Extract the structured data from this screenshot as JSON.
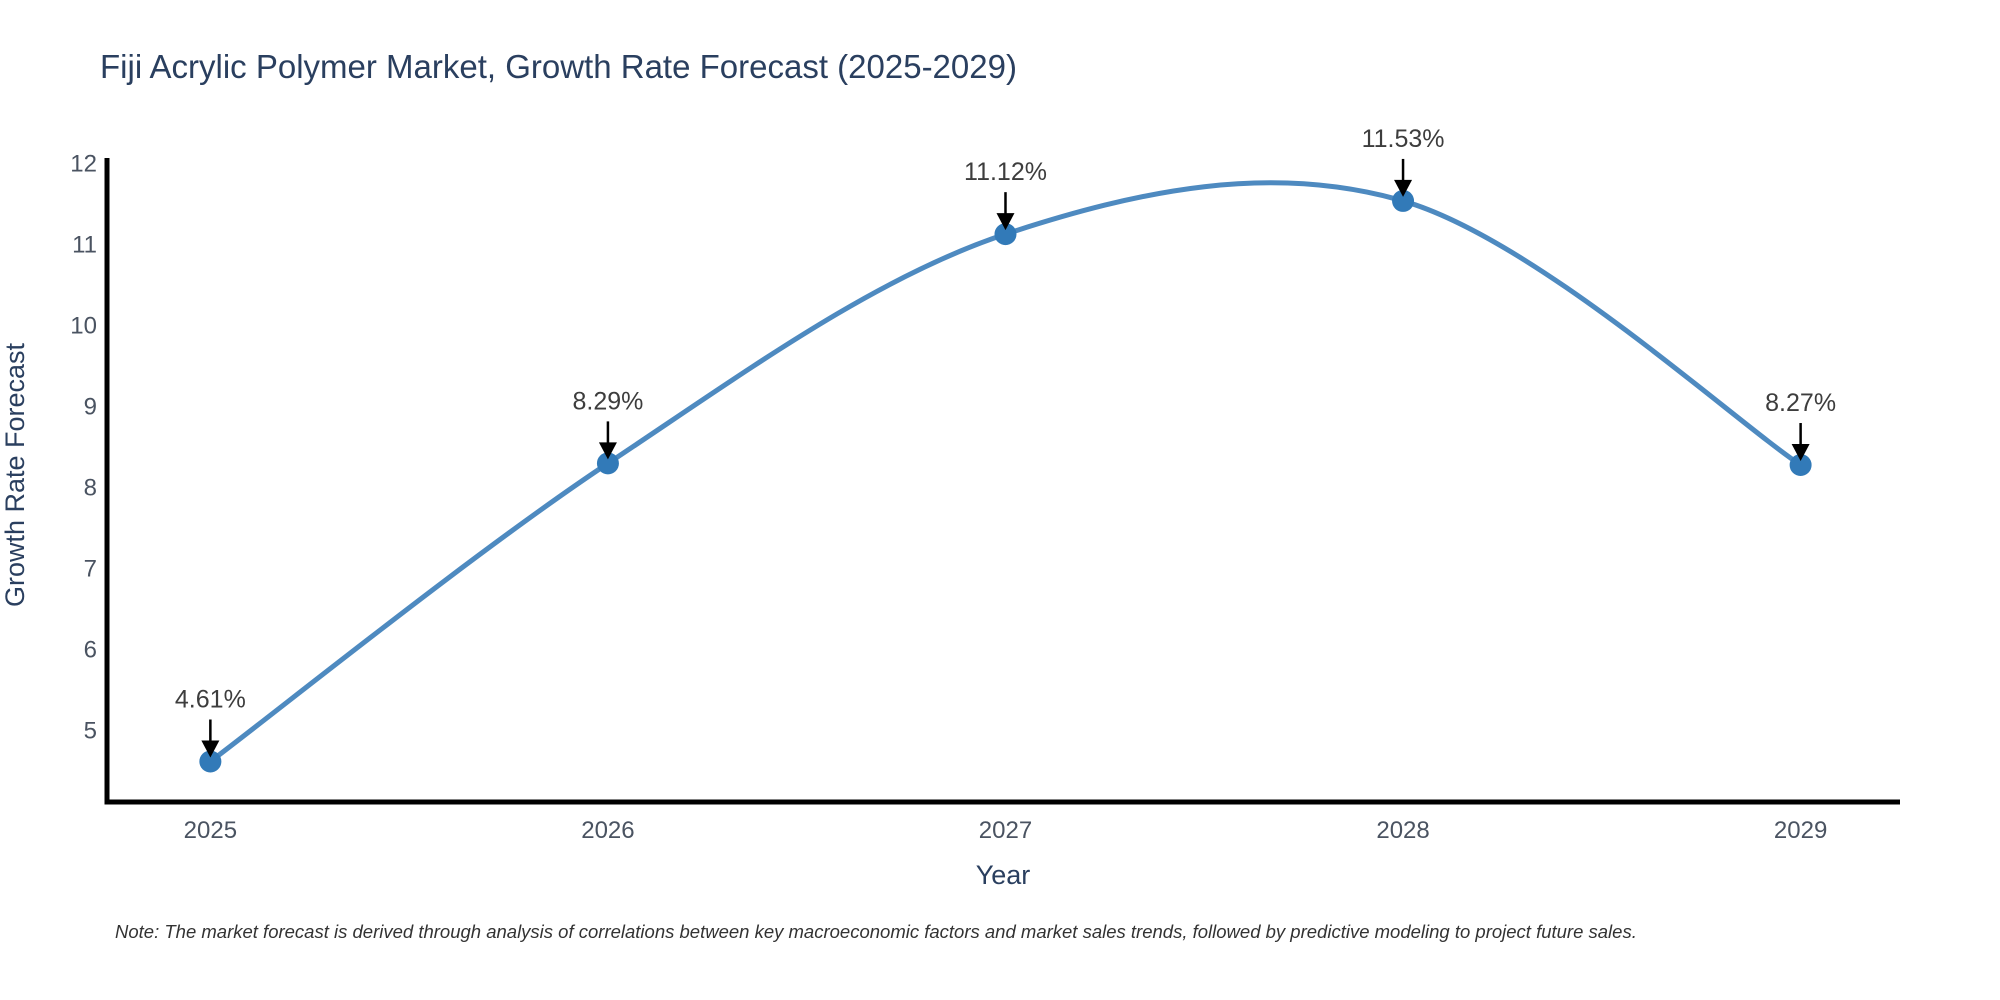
{
  "note": "Note: The market forecast is derived through analysis of correlations between key macroeconomic factors and market sales trends, followed by predictive modeling to project future sales.",
  "chart_data": {
    "type": "line",
    "title": "Fiji Acrylic Polymer Market, Growth Rate Forecast (2025-2029)",
    "xlabel": "Year",
    "ylabel": "Growth Rate Forecast",
    "x": [
      2025,
      2026,
      2027,
      2028,
      2029
    ],
    "values": [
      4.61,
      8.29,
      11.12,
      11.53,
      8.27
    ],
    "point_labels": [
      "4.61%",
      "8.29%",
      "11.12%",
      "11.53%",
      "8.27%"
    ],
    "xtick_labels": [
      "2025",
      "2026",
      "2027",
      "2028",
      "2029"
    ],
    "yticks": [
      5,
      6,
      7,
      8,
      9,
      10,
      11,
      12
    ],
    "ylim": [
      4.11,
      12.06
    ],
    "xlim": [
      2024.74,
      2029.25
    ],
    "line_shape": "spline",
    "grid": false,
    "legend": "none",
    "marker_size": 11,
    "colors": {
      "line": "#4e8ac0",
      "marker": "#327ab8",
      "axis": "#000000",
      "title": "#2a3f5f",
      "axis_title": "#2a3f5f",
      "tick": "#4a5361",
      "annotation_text": "#3d3d3d",
      "arrow": "#000000",
      "note_text": "#333333"
    }
  }
}
